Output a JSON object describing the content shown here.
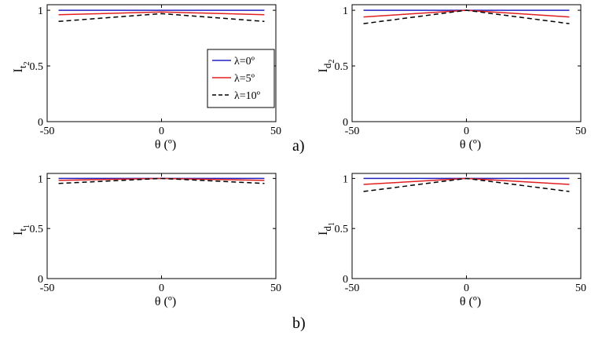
{
  "chart_data": [
    {
      "type": "line",
      "ylabel": "I",
      "ylabel_sub": "t",
      "ylabel_subsub": "2",
      "xlabel": "θ (º)",
      "xlim": [
        -50,
        50
      ],
      "ylim": [
        0,
        1.05
      ],
      "xticks": [
        "-50",
        "0",
        "50"
      ],
      "yticks": [
        "0",
        "0.5",
        "1"
      ],
      "series": [
        {
          "name": "λ=0º",
          "color": "#2020c0",
          "dash": "solid",
          "x": [
            -45,
            0,
            45
          ],
          "y": [
            1.0,
            1.0,
            1.0
          ]
        },
        {
          "name": "λ=5º",
          "color": "#e02020",
          "dash": "solid",
          "x": [
            -45,
            0,
            45
          ],
          "y": [
            0.96,
            0.985,
            0.96
          ]
        },
        {
          "name": "λ=10º",
          "color": "#000000",
          "dash": "dashed",
          "x": [
            -45,
            0,
            45
          ],
          "y": [
            0.9,
            0.97,
            0.9
          ]
        }
      ],
      "legend": {
        "location": "bottom-right",
        "entries": [
          "λ=0º",
          "λ=5º",
          "λ=10º"
        ]
      }
    },
    {
      "type": "line",
      "ylabel": "I",
      "ylabel_sub": "d",
      "ylabel_subsub": "2",
      "xlabel": "θ (º)",
      "xlim": [
        -50,
        50
      ],
      "ylim": [
        0,
        1.05
      ],
      "xticks": [
        "-50",
        "0",
        "50"
      ],
      "yticks": [
        "0",
        "0.5",
        "1"
      ],
      "series": [
        {
          "name": "λ=0º",
          "color": "#2020c0",
          "dash": "solid",
          "x": [
            -45,
            0,
            45
          ],
          "y": [
            1.0,
            1.0,
            1.0
          ]
        },
        {
          "name": "λ=5º",
          "color": "#e02020",
          "dash": "solid",
          "x": [
            -45,
            0,
            45
          ],
          "y": [
            0.94,
            1.0,
            0.94
          ]
        },
        {
          "name": "λ=10º",
          "color": "#000000",
          "dash": "dashed",
          "x": [
            -45,
            0,
            45
          ],
          "y": [
            0.88,
            1.0,
            0.88
          ]
        }
      ]
    },
    {
      "type": "line",
      "ylabel": "I",
      "ylabel_sub": "t",
      "ylabel_subsub": "1",
      "xlabel": "θ (º)",
      "xlim": [
        -50,
        50
      ],
      "ylim": [
        0,
        1.05
      ],
      "xticks": [
        "-50",
        "0",
        "50"
      ],
      "yticks": [
        "0",
        "0.5",
        "1"
      ],
      "series": [
        {
          "name": "λ=0º",
          "color": "#2020c0",
          "dash": "solid",
          "x": [
            -45,
            0,
            45
          ],
          "y": [
            1.0,
            1.0,
            1.0
          ]
        },
        {
          "name": "λ=5º",
          "color": "#e02020",
          "dash": "solid",
          "x": [
            -45,
            0,
            45
          ],
          "y": [
            0.98,
            1.0,
            0.98
          ]
        },
        {
          "name": "λ=10º",
          "color": "#000000",
          "dash": "dashed",
          "x": [
            -45,
            0,
            45
          ],
          "y": [
            0.95,
            1.0,
            0.95
          ]
        }
      ]
    },
    {
      "type": "line",
      "ylabel": "I",
      "ylabel_sub": "d",
      "ylabel_subsub": "1",
      "xlabel": "θ (º)",
      "xlim": [
        -50,
        50
      ],
      "ylim": [
        0,
        1.05
      ],
      "xticks": [
        "-50",
        "0",
        "50"
      ],
      "yticks": [
        "0",
        "0.5",
        "1"
      ],
      "series": [
        {
          "name": "λ=0º",
          "color": "#2020c0",
          "dash": "solid",
          "x": [
            -45,
            0,
            45
          ],
          "y": [
            1.0,
            1.0,
            1.0
          ]
        },
        {
          "name": "λ=5º",
          "color": "#e02020",
          "dash": "solid",
          "x": [
            -45,
            0,
            45
          ],
          "y": [
            0.94,
            1.0,
            0.94
          ]
        },
        {
          "name": "λ=10º",
          "color": "#000000",
          "dash": "dashed",
          "x": [
            -45,
            0,
            45
          ],
          "y": [
            0.87,
            1.0,
            0.87
          ]
        }
      ]
    }
  ],
  "panel_tags": {
    "top": "a)",
    "bottom": "b)"
  }
}
